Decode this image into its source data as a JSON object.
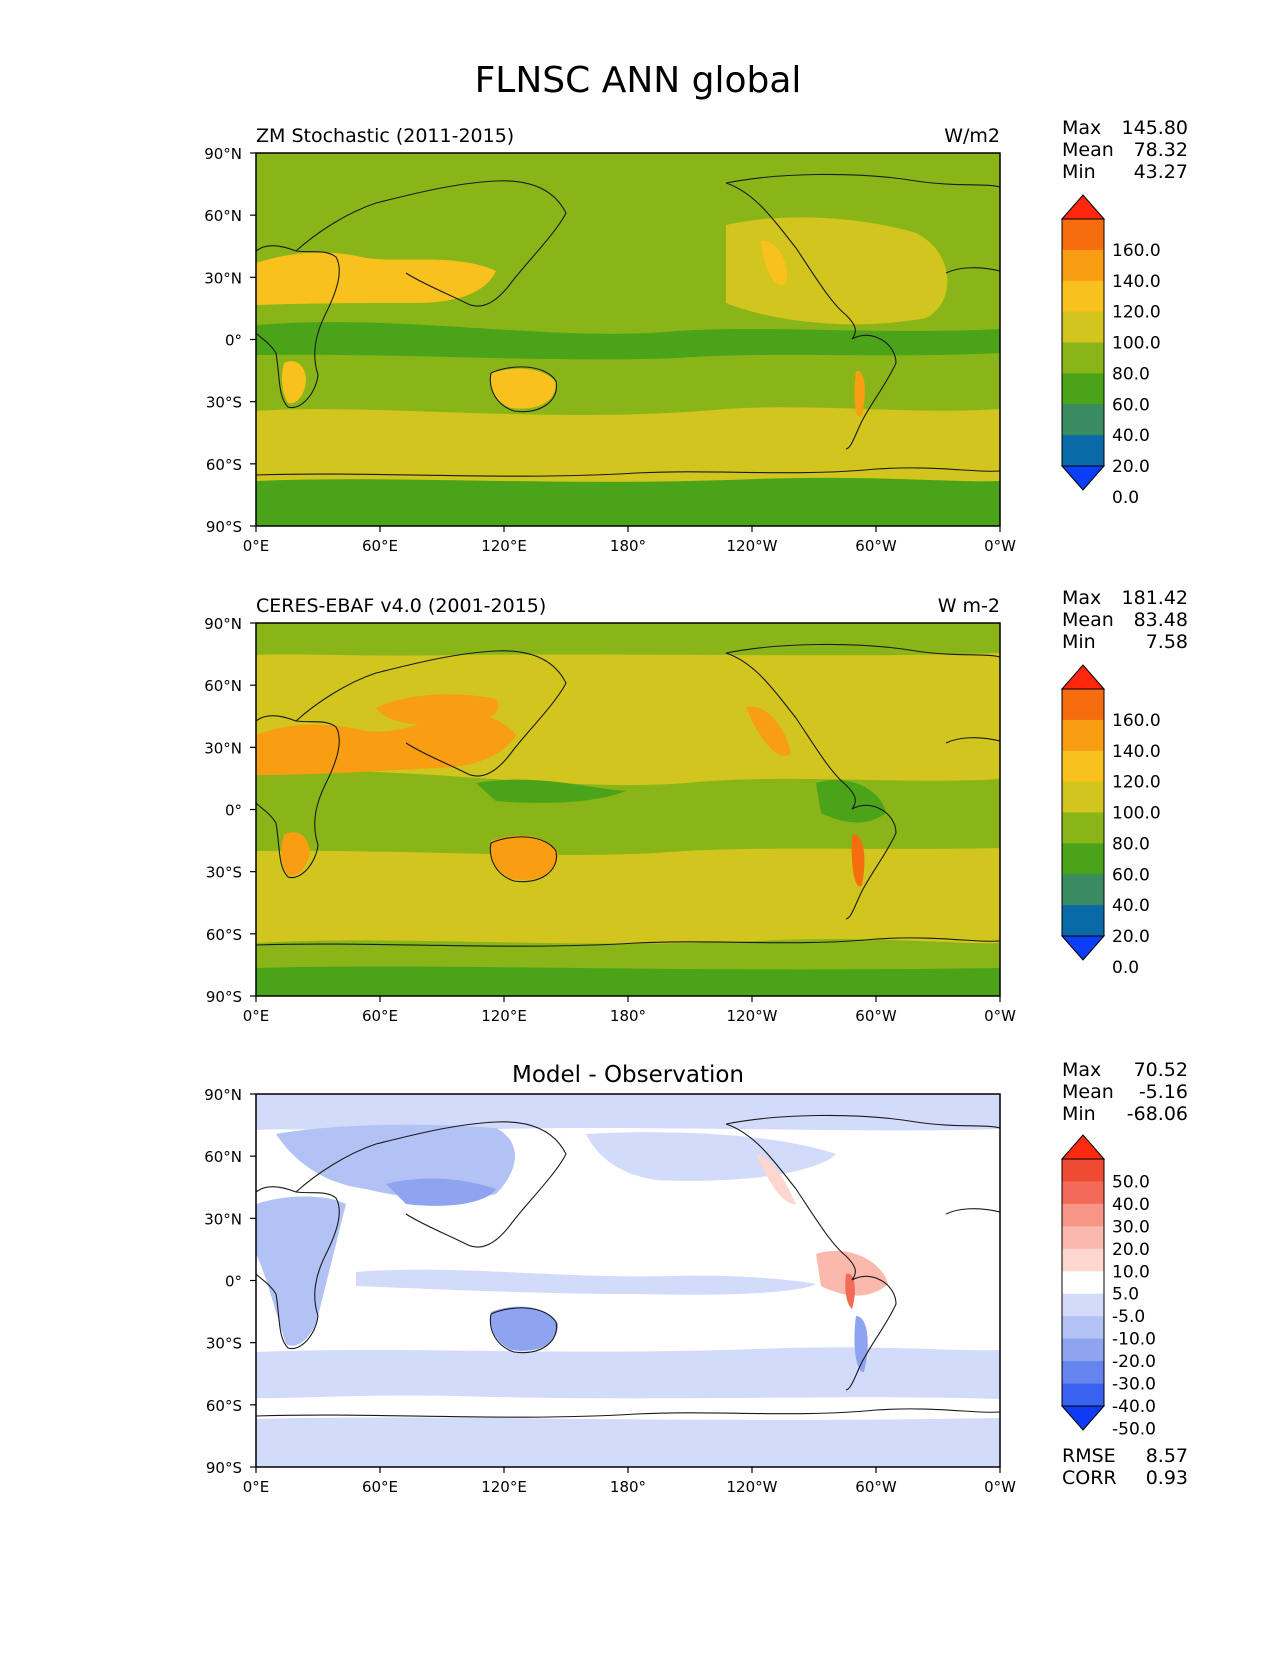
{
  "figure": {
    "title": "FLNSC ANN global"
  },
  "axes": {
    "lat_labels": [
      "90°N",
      "60°N",
      "30°N",
      "0°",
      "30°S",
      "60°S",
      "90°S"
    ],
    "lon_labels": [
      "0°E",
      "60°E",
      "120°E",
      "180°",
      "120°W",
      "60°W",
      "0°W"
    ]
  },
  "colors": {
    "abs_palette": [
      "#0a3ff7",
      "#0a6aa8",
      "#3a8a62",
      "#4aa319",
      "#8ab519",
      "#d1c51e",
      "#f9c11e",
      "#f99d12",
      "#f56d0e",
      "#ff280f"
    ],
    "diff_palette": [
      "#0f3bf5",
      "#3a62f0",
      "#6584f0",
      "#8ea4f1",
      "#b3c2f5",
      "#d2dbf9",
      "#ffffff",
      "#fdd6cf",
      "#fbb8ad",
      "#f79686",
      "#f36b58",
      "#ef4a32",
      "#ff2a0f"
    ],
    "land_outline": "#1a1a1a"
  },
  "panels": [
    {
      "kind": "absolute",
      "left_title": "ZM Stochastic (2011-2015)",
      "units": "W/m2",
      "stats": [
        {
          "label": "Max",
          "value": "145.80"
        },
        {
          "label": "Mean",
          "value": "78.32"
        },
        {
          "label": "Min",
          "value": "43.27"
        }
      ],
      "colorbar_labels": [
        "160.0",
        "140.0",
        "120.0",
        "100.0",
        "80.0",
        "60.0",
        "40.0",
        "20.0",
        "0.0"
      ]
    },
    {
      "kind": "absolute",
      "left_title": "CERES-EBAF v4.0 (2001-2015)",
      "units": "W m-2",
      "stats": [
        {
          "label": "Max",
          "value": "181.42"
        },
        {
          "label": "Mean",
          "value": "83.48"
        },
        {
          "label": "Min",
          "value": "7.58"
        }
      ],
      "colorbar_labels": [
        "160.0",
        "140.0",
        "120.0",
        "100.0",
        "80.0",
        "60.0",
        "40.0",
        "20.0",
        "0.0"
      ]
    },
    {
      "kind": "difference",
      "center_title": "Model - Observation",
      "stats": [
        {
          "label": "Max",
          "value": "70.52"
        },
        {
          "label": "Mean",
          "value": "-5.16"
        },
        {
          "label": "Min",
          "value": "-68.06"
        }
      ],
      "colorbar_labels": [
        "50.0",
        "40.0",
        "30.0",
        "20.0",
        "10.0",
        "5.0",
        "-5.0",
        "-10.0",
        "-20.0",
        "-30.0",
        "-40.0",
        "-50.0"
      ],
      "metrics": [
        {
          "label": "RMSE",
          "value": "8.57"
        },
        {
          "label": "CORR",
          "value": "0.93"
        }
      ]
    }
  ]
}
